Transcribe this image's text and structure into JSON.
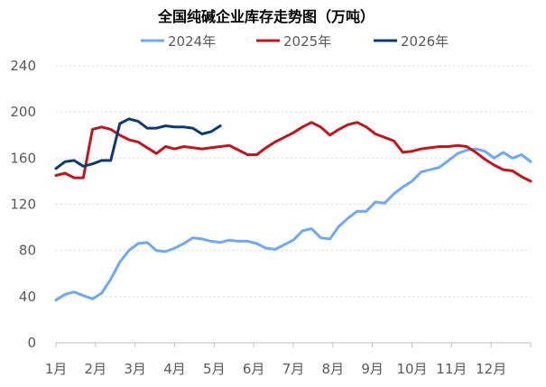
{
  "chart_data": {
    "type": "line",
    "title": "全国纯碱企业库存走势图（万吨）",
    "xlabel": "",
    "ylabel": "",
    "x_tick_labels": [
      "1月",
      "2月",
      "3月",
      "4月",
      "5月",
      "6月",
      "7月",
      "8月",
      "9月",
      "10月",
      "11月",
      "12月"
    ],
    "y_ticks": [
      0,
      40,
      80,
      120,
      160,
      200,
      240
    ],
    "ylim": [
      0,
      240
    ],
    "xlim": [
      0,
      52
    ],
    "grid": "horizontal dashed",
    "legend_position": "top",
    "series": [
      {
        "name": "2024年",
        "color": "#6fa8f5",
        "x": [
          0,
          1,
          2,
          3,
          4,
          5,
          6,
          7,
          8,
          9,
          10,
          11,
          12,
          13,
          14,
          15,
          16,
          17,
          18,
          19,
          20,
          21,
          22,
          23,
          24,
          25,
          26,
          27,
          28,
          29,
          30,
          31,
          32,
          33,
          34,
          35,
          36,
          37,
          38,
          39,
          40,
          41,
          42,
          43,
          44,
          45,
          46,
          47,
          48,
          49,
          50,
          51,
          52
        ],
        "values": [
          37,
          42,
          44,
          41,
          38,
          43,
          55,
          70,
          80,
          86,
          87,
          80,
          79,
          82,
          86,
          91,
          90,
          88,
          87,
          89,
          88,
          88,
          86,
          82,
          81,
          85,
          89,
          97,
          99,
          91,
          90,
          101,
          108,
          114,
          114,
          122,
          121,
          129,
          135,
          140,
          148,
          150,
          152,
          158,
          164,
          167,
          168,
          166,
          160,
          165,
          160,
          163,
          157
        ]
      },
      {
        "name": "2025年",
        "color": "#c0161c",
        "x": [
          0,
          1,
          2,
          3,
          4,
          5,
          6,
          7,
          8,
          9,
          10,
          11,
          12,
          13,
          14,
          15,
          16,
          17,
          18,
          19,
          20,
          21,
          22,
          23,
          24,
          25,
          26,
          27,
          28,
          29,
          30,
          31,
          32,
          33,
          34,
          35,
          36,
          37,
          38,
          39,
          40,
          41,
          42,
          43,
          44,
          45,
          46,
          47,
          48,
          49,
          50,
          51,
          52
        ],
        "values": [
          145,
          147,
          143,
          143,
          185,
          187,
          185,
          180,
          176,
          174,
          169,
          164,
          170,
          168,
          170,
          169,
          168,
          169,
          170,
          171,
          167,
          163,
          163,
          169,
          174,
          178,
          182,
          187,
          191,
          187,
          180,
          185,
          189,
          191,
          187,
          181,
          178,
          175,
          165,
          166,
          168,
          169,
          170,
          170,
          171,
          170,
          165,
          159,
          154,
          150,
          149,
          144,
          140
        ]
      },
      {
        "name": "2026年",
        "color": "#0c3a78",
        "x": [
          0,
          1,
          2,
          3,
          4,
          5,
          6,
          7,
          8,
          9,
          10,
          11,
          12,
          13,
          14,
          15,
          16,
          17,
          18
        ],
        "values": [
          151,
          157,
          158,
          153,
          155,
          158,
          158,
          190,
          194,
          192,
          186,
          186,
          188,
          187,
          187,
          186,
          181,
          183,
          188
        ]
      }
    ]
  }
}
